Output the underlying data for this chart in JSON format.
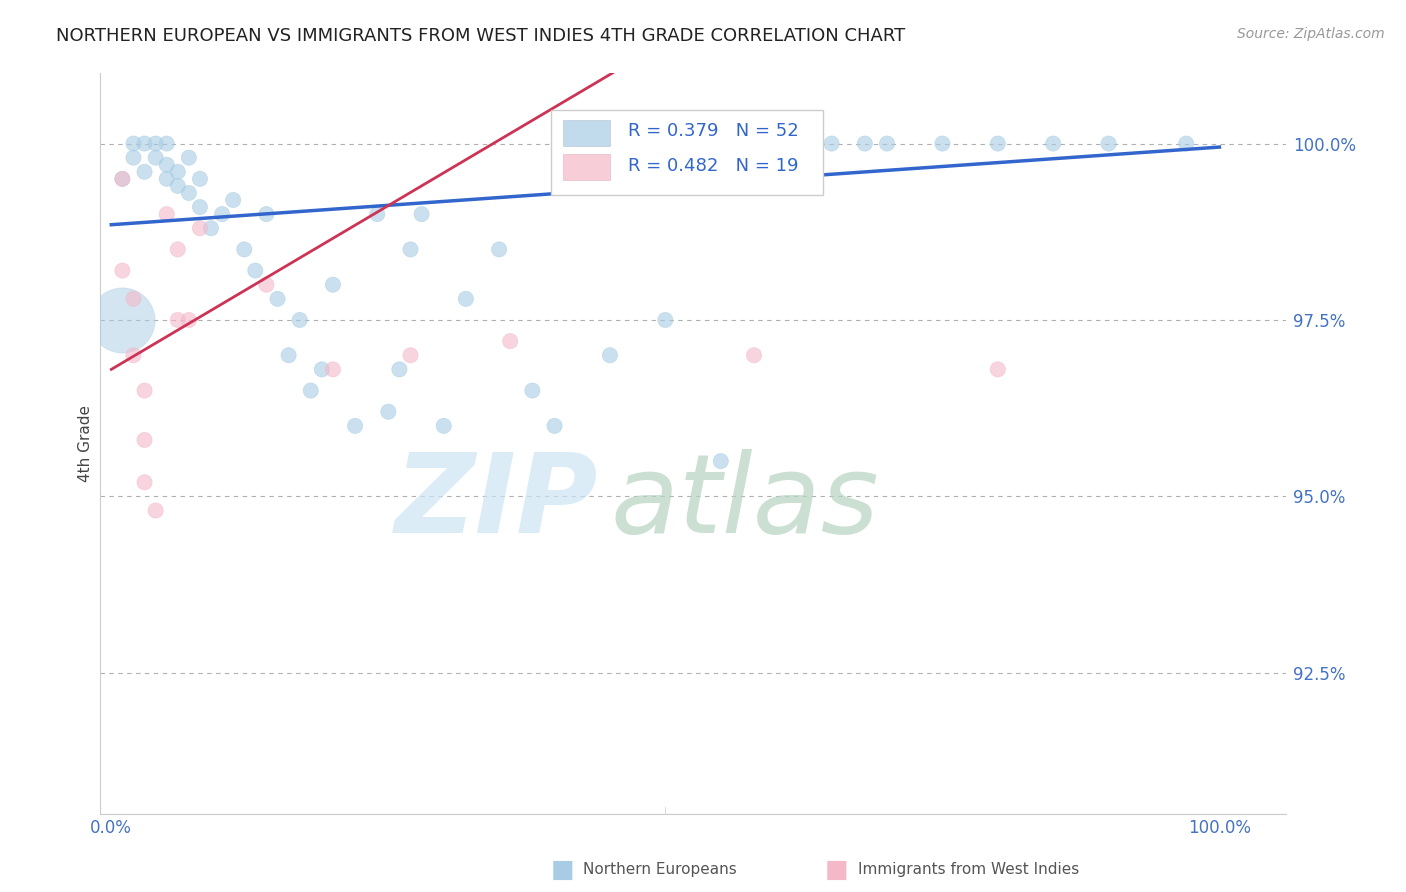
{
  "title": "NORTHERN EUROPEAN VS IMMIGRANTS FROM WEST INDIES 4TH GRADE CORRELATION CHART",
  "source": "Source: ZipAtlas.com",
  "ylabel": "4th Grade",
  "blue_R": 0.379,
  "blue_N": 52,
  "pink_R": 0.482,
  "pink_N": 19,
  "blue_color": "#a8cce4",
  "pink_color": "#f4b8c8",
  "blue_line_color": "#3366cc",
  "pink_line_color": "#cc3355",
  "ytick_vals": [
    92.5,
    95.0,
    97.5,
    100.0
  ],
  "ytick_labels": [
    "92.5%",
    "95.0%",
    "97.5%",
    "100.0%"
  ],
  "xlim": [
    -0.01,
    1.06
  ],
  "ylim": [
    90.5,
    101.0
  ],
  "blue_line_x0": 0.0,
  "blue_line_y0": 98.85,
  "blue_line_x1": 1.0,
  "blue_line_y1": 99.95,
  "pink_line_x0": 0.0,
  "pink_line_y0": 96.8,
  "pink_line_x1": 0.35,
  "pink_line_y1": 100.05,
  "blue_x": [
    0.01,
    0.02,
    0.02,
    0.03,
    0.03,
    0.04,
    0.04,
    0.05,
    0.05,
    0.05,
    0.06,
    0.06,
    0.07,
    0.07,
    0.08,
    0.08,
    0.09,
    0.1,
    0.11,
    0.12,
    0.13,
    0.14,
    0.15,
    0.16,
    0.17,
    0.18,
    0.19,
    0.2,
    0.22,
    0.24,
    0.25,
    0.26,
    0.27,
    0.28,
    0.3,
    0.32,
    0.35,
    0.38,
    0.4,
    0.45,
    0.5,
    0.55,
    0.6,
    0.63,
    0.65,
    0.68,
    0.7,
    0.75,
    0.8,
    0.85,
    0.9,
    0.97
  ],
  "blue_y": [
    99.5,
    99.8,
    100.0,
    100.0,
    99.6,
    100.0,
    99.8,
    99.7,
    100.0,
    99.5,
    99.4,
    99.6,
    99.3,
    99.8,
    99.1,
    99.5,
    98.8,
    99.0,
    99.2,
    98.5,
    98.2,
    99.0,
    97.8,
    97.0,
    97.5,
    96.5,
    96.8,
    98.0,
    96.0,
    99.0,
    96.2,
    96.8,
    98.5,
    99.0,
    96.0,
    97.8,
    98.5,
    96.5,
    96.0,
    97.0,
    97.5,
    95.5,
    100.0,
    100.0,
    100.0,
    100.0,
    100.0,
    100.0,
    100.0,
    100.0,
    100.0,
    100.0
  ],
  "blue_sizes": [
    120,
    120,
    120,
    120,
    120,
    120,
    120,
    120,
    120,
    120,
    120,
    120,
    120,
    120,
    120,
    120,
    120,
    120,
    120,
    120,
    120,
    120,
    120,
    120,
    120,
    120,
    120,
    120,
    120,
    120,
    120,
    120,
    120,
    120,
    120,
    120,
    120,
    120,
    120,
    120,
    120,
    120,
    120,
    120,
    120,
    120,
    120,
    120,
    120,
    120,
    120,
    120
  ],
  "blue_big_idx": 0,
  "blue_big_size": 2000,
  "pink_x": [
    0.01,
    0.01,
    0.02,
    0.02,
    0.03,
    0.03,
    0.03,
    0.04,
    0.05,
    0.06,
    0.06,
    0.07,
    0.08,
    0.14,
    0.2,
    0.27,
    0.36,
    0.58,
    0.8
  ],
  "pink_y": [
    99.5,
    98.2,
    97.8,
    97.0,
    96.5,
    95.8,
    95.2,
    94.8,
    99.0,
    98.5,
    97.5,
    97.5,
    98.8,
    98.0,
    96.8,
    97.0,
    97.2,
    97.0,
    96.8
  ],
  "pink_sizes": [
    120,
    120,
    120,
    120,
    120,
    120,
    120,
    120,
    120,
    120,
    120,
    120,
    120,
    120,
    120,
    120,
    120,
    120,
    120
  ]
}
